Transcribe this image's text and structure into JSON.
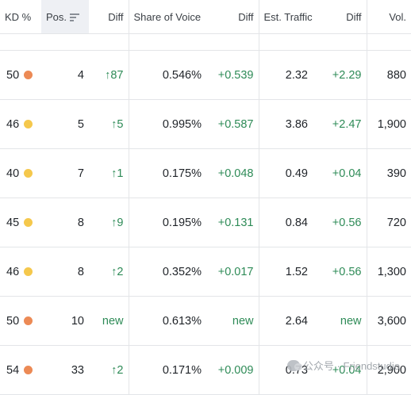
{
  "columns": {
    "kd": "KD %",
    "pos": "Pos.",
    "pos_diff": "Diff",
    "sov": "Share of Voice",
    "sov_diff": "Diff",
    "traffic": "Est. Traffic",
    "traffic_diff": "Diff",
    "vol": "Vol."
  },
  "colors": {
    "orange": "#ec8a55",
    "yellow": "#f5c84c",
    "green": "#2e8b57"
  },
  "rows": [
    {
      "kd": "50",
      "kd_color": "orange",
      "pos": "4",
      "pos_diff": "↑87",
      "sov": "0.546%",
      "sov_diff": "+0.539",
      "traffic": "2.32",
      "traffic_diff": "+2.29",
      "vol": "880"
    },
    {
      "kd": "46",
      "kd_color": "yellow",
      "pos": "5",
      "pos_diff": "↑5",
      "sov": "0.995%",
      "sov_diff": "+0.587",
      "traffic": "3.86",
      "traffic_diff": "+2.47",
      "vol": "1,900"
    },
    {
      "kd": "40",
      "kd_color": "yellow",
      "pos": "7",
      "pos_diff": "↑1",
      "sov": "0.175%",
      "sov_diff": "+0.048",
      "traffic": "0.49",
      "traffic_diff": "+0.04",
      "vol": "390"
    },
    {
      "kd": "45",
      "kd_color": "yellow",
      "pos": "8",
      "pos_diff": "↑9",
      "sov": "0.195%",
      "sov_diff": "+0.131",
      "traffic": "0.84",
      "traffic_diff": "+0.56",
      "vol": "720"
    },
    {
      "kd": "46",
      "kd_color": "yellow",
      "pos": "8",
      "pos_diff": "↑2",
      "sov": "0.352%",
      "sov_diff": "+0.017",
      "traffic": "1.52",
      "traffic_diff": "+0.56",
      "vol": "1,300"
    },
    {
      "kd": "50",
      "kd_color": "orange",
      "pos": "10",
      "pos_diff": "new",
      "sov": "0.613%",
      "sov_diff": "new",
      "traffic": "2.64",
      "traffic_diff": "new",
      "vol": "3,600"
    },
    {
      "kd": "54",
      "kd_color": "orange",
      "pos": "33",
      "pos_diff": "↑2",
      "sov": "0.171%",
      "sov_diff": "+0.009",
      "traffic": "0.73",
      "traffic_diff": "+0.04",
      "vol": "2,900"
    }
  ],
  "watermark": "公众号 · Friendstudio"
}
